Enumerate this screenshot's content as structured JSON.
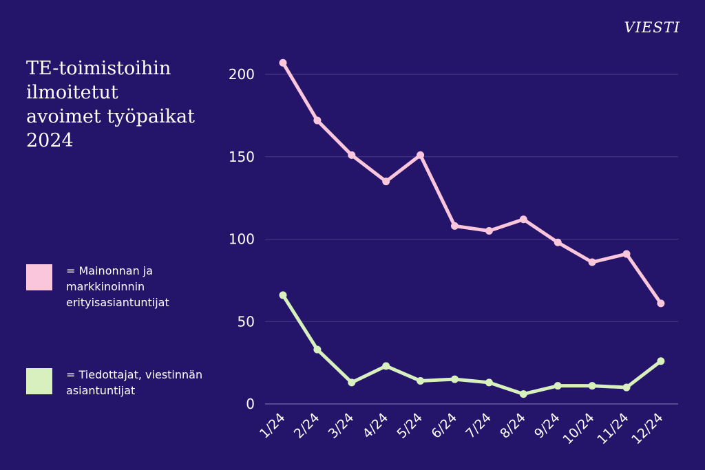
{
  "logo": "VIESTI",
  "title": "TE-toimistoihin ilmoitetut avoimet työpaikat 2024",
  "legend": [
    {
      "label": "= Mainonnan ja markkinoinnin erityisasiantuntijat",
      "color": "#f9c6dc"
    },
    {
      "label": "= Tiedottajat, viestinnän asiantuntijat",
      "color": "#d7f0be"
    }
  ],
  "colors": {
    "background": "#25156a",
    "grid": "#4a3d8a",
    "text": "#ffffff"
  },
  "chart_data": {
    "type": "line",
    "title": "TE-toimistoihin ilmoitetut avoimet työpaikat 2024",
    "xlabel": "",
    "ylabel": "",
    "categories": [
      "1/24",
      "2/24",
      "3/24",
      "4/24",
      "5/24",
      "6/24",
      "7/24",
      "8/24",
      "9/24",
      "10/24",
      "11/24",
      "12/24"
    ],
    "ylim": [
      0,
      200
    ],
    "yticks": [
      0,
      50,
      100,
      150,
      200
    ],
    "grid": true,
    "series": [
      {
        "name": "= Mainonnan ja markkinoinnin erityisasiantuntijat",
        "color": "#f9c6dc",
        "values": [
          207,
          172,
          151,
          135,
          151,
          108,
          105,
          112,
          98,
          86,
          91,
          61
        ]
      },
      {
        "name": "= Tiedottajat, viestinnän asiantuntijat",
        "color": "#d7f0be",
        "values": [
          66,
          33,
          13,
          23,
          14,
          15,
          13,
          6,
          11,
          11,
          10,
          26
        ]
      }
    ]
  }
}
